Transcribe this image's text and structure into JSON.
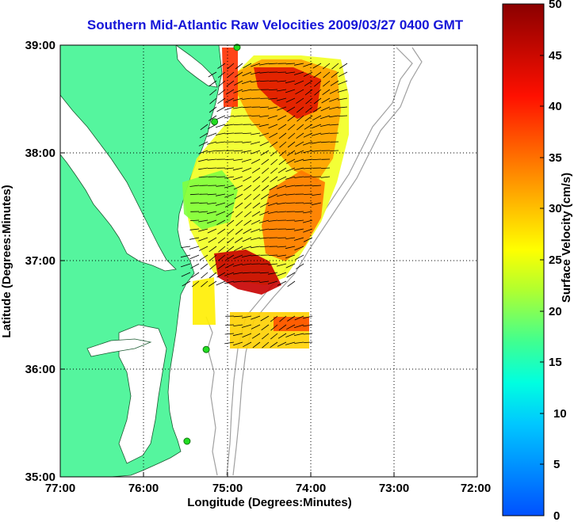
{
  "title": "Southern Mid-Atlantic Raw Velocities 2009/03/27 0400 GMT",
  "x_axis": {
    "label": "Longitude (Degrees:Minutes)",
    "ticks": [
      "77:00",
      "76:00",
      "75:00",
      "74:00",
      "73:00",
      "72:00"
    ]
  },
  "y_axis": {
    "label": "Latitude (Degrees:Minutes)",
    "ticks": [
      "39:00",
      "38:00",
      "37:00",
      "36:00",
      "35:00"
    ]
  },
  "colorbar": {
    "label": "Surface Velocity (cm/s)",
    "min": 0,
    "max": 50,
    "ticks": [
      "50",
      "45",
      "40",
      "35",
      "30",
      "25",
      "20",
      "15",
      "10",
      "5",
      "0"
    ],
    "colors": [
      "#0000ff",
      "#00c0ff",
      "#00ffff",
      "#60ff80",
      "#c0ff00",
      "#ffff00",
      "#ffa000",
      "#ff4000",
      "#d00000",
      "#800000"
    ]
  },
  "chart_data": {
    "type": "map",
    "lon_range": [
      -77,
      -72
    ],
    "lat_range": [
      35,
      39
    ],
    "grid": true,
    "land_color": "#55f59e",
    "bathymetry_color": "#a0a0a0",
    "stations": [
      {
        "lon": -74.88,
        "lat": 38.98
      },
      {
        "lon": -75.15,
        "lat": 38.29
      },
      {
        "lon": -75.25,
        "lat": 36.18
      },
      {
        "lon": -75.48,
        "lat": 35.33
      }
    ]
  }
}
